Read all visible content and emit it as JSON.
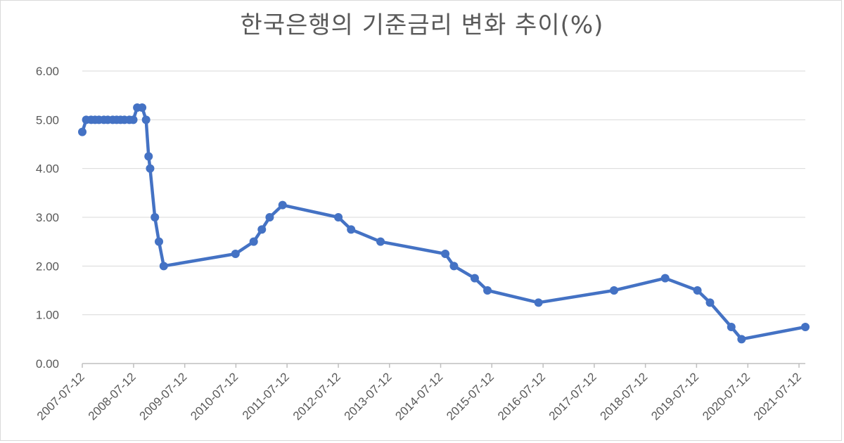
{
  "chart_data": {
    "type": "line",
    "title": "한국은행의 기준금리 변화 추이(%)",
    "xlabel": "",
    "ylabel": "",
    "ylim": [
      0,
      6
    ],
    "yticks": [
      "0.00",
      "1.00",
      "2.00",
      "3.00",
      "4.00",
      "5.00",
      "6.00"
    ],
    "xticks": [
      "2007-07-12",
      "2008-07-12",
      "2009-07-12",
      "2010-07-12",
      "2011-07-12",
      "2012-07-12",
      "2013-07-12",
      "2014-07-12",
      "2015-07-12",
      "2016-07-12",
      "2017-07-12",
      "2018-07-12",
      "2019-07-12",
      "2020-07-12",
      "2021-07-12"
    ],
    "xlim": [
      "2007-07-12",
      "2021-08-26"
    ],
    "grid": true,
    "legend": "none",
    "color": "#4472c4",
    "series": [
      {
        "x": [
          "2007-07-12",
          "2007-08-09",
          "2007-09-13",
          "2007-10-11",
          "2007-11-08",
          "2007-12-13",
          "2008-01-10",
          "2008-02-14",
          "2008-03-13",
          "2008-04-10",
          "2008-05-08",
          "2008-06-12",
          "2008-07-10",
          "2008-08-07",
          "2008-09-11",
          "2008-10-09",
          "2008-10-27",
          "2008-11-07",
          "2008-12-11",
          "2009-01-09",
          "2009-02-12",
          "2010-07-09",
          "2010-11-16",
          "2011-01-13",
          "2011-03-10",
          "2011-06-10",
          "2012-07-12",
          "2012-10-11",
          "2013-05-09",
          "2014-08-14",
          "2014-10-15",
          "2015-03-12",
          "2015-06-11",
          "2016-06-09",
          "2017-11-30",
          "2018-11-30",
          "2019-07-18",
          "2019-10-16",
          "2020-03-16",
          "2020-05-28",
          "2021-08-26"
        ],
        "values": [
          4.75,
          5.0,
          5.0,
          5.0,
          5.0,
          5.0,
          5.0,
          5.0,
          5.0,
          5.0,
          5.0,
          5.0,
          5.0,
          5.25,
          5.25,
          5.0,
          4.25,
          4.0,
          3.0,
          2.5,
          2.0,
          2.25,
          2.5,
          2.75,
          3.0,
          3.25,
          3.0,
          2.75,
          2.5,
          2.25,
          2.0,
          1.75,
          1.5,
          1.25,
          1.5,
          1.75,
          1.5,
          1.25,
          0.75,
          0.5,
          0.75
        ]
      }
    ]
  }
}
